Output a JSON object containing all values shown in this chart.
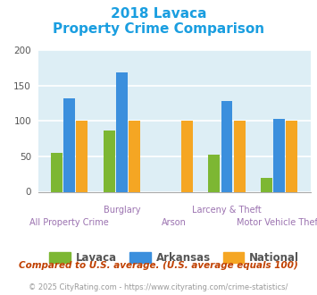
{
  "title_line1": "2018 Lavaca",
  "title_line2": "Property Crime Comparison",
  "categories": [
    "All Property Crime",
    "Burglary",
    "Arson",
    "Larceny & Theft",
    "Motor Vehicle Theft"
  ],
  "lavaca": [
    55,
    87,
    0,
    52,
    19
  ],
  "arkansas": [
    132,
    169,
    0,
    128,
    103
  ],
  "national": [
    100,
    100,
    100,
    100,
    100
  ],
  "lavaca_color": "#7db733",
  "arkansas_color": "#3b8fdd",
  "national_color": "#f5a623",
  "title_color": "#1a9ee0",
  "bg_color": "#ddeef5",
  "ylim": [
    0,
    200
  ],
  "yticks": [
    0,
    50,
    100,
    150,
    200
  ],
  "xlabel_color": "#9b72b0",
  "legend_labels": [
    "Lavaca",
    "Arkansas",
    "National"
  ],
  "footnote1": "Compared to U.S. average. (U.S. average equals 100)",
  "footnote2": "© 2025 CityRating.com - https://www.cityrating.com/crime-statistics/",
  "footnote1_color": "#c04000",
  "footnote2_color": "#999999",
  "footnote2_link_color": "#3388cc"
}
